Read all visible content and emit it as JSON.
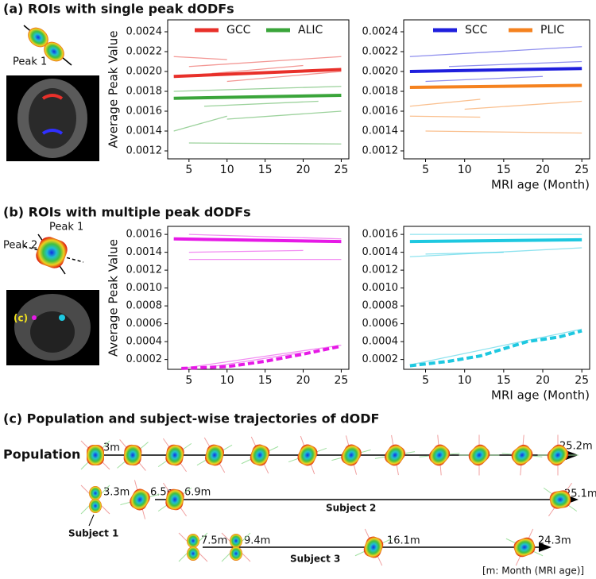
{
  "panels": {
    "a_title": "(a) ROIs with single peak dODFs",
    "a_peak": "Peak 1",
    "b_title": "(b) ROIs with multiple peak dODFs",
    "b_peak1": "Peak 1",
    "b_peak2": "Peak 2",
    "b_roi": "(c)",
    "c_title": "(c) Population and subject-wise trajectories of dODF",
    "c_population": "Population",
    "c_ages": [
      "3m",
      "25.2m",
      "3.3m",
      "6.5m",
      "6.9m",
      "25.1m",
      "7.5m",
      "9.4m",
      "16.1m",
      "24.3m"
    ],
    "c_subjects": [
      "Subject 1",
      "Subject 2",
      "Subject 3"
    ],
    "c_note": "[m: Month (MRI age)]"
  },
  "chart_data": [
    {
      "type": "line",
      "ylabel": "Average Peak Value",
      "xlim": [
        2.2,
        26
      ],
      "xticks": [
        5,
        10,
        15,
        20,
        25
      ],
      "ylim": [
        0.00112,
        0.00252
      ],
      "yticks": [
        0.0012,
        0.0014,
        0.0016,
        0.0018,
        {
          "value": 0.002,
          "label": "0.0020"
        },
        0.0022,
        0.0024
      ],
      "series": [
        {
          "name": "GCC",
          "color": "#e8302a",
          "x": [
            3,
            25
          ],
          "values": [
            0.00195,
            0.00202
          ]
        },
        {
          "name": "ALIC",
          "color": "#3aa53a",
          "x": [
            3,
            25
          ],
          "values": [
            0.00173,
            0.00176
          ]
        }
      ],
      "subject_lines": [
        {
          "color": "#e8302a",
          "x": [
            3,
            10
          ],
          "values": [
            0.00215,
            0.00212
          ]
        },
        {
          "color": "#e8302a",
          "x": [
            5,
            25
          ],
          "values": [
            0.00205,
            0.00215
          ]
        },
        {
          "color": "#e8302a",
          "x": [
            8,
            20
          ],
          "values": [
            0.00198,
            0.00206
          ]
        },
        {
          "color": "#e8302a",
          "x": [
            10,
            25
          ],
          "values": [
            0.0019,
            0.002
          ]
        },
        {
          "color": "#3aa53a",
          "x": [
            3,
            10
          ],
          "values": [
            0.0014,
            0.00155
          ]
        },
        {
          "color": "#3aa53a",
          "x": [
            5,
            25
          ],
          "values": [
            0.00128,
            0.00127
          ]
        },
        {
          "color": "#3aa53a",
          "x": [
            10,
            25
          ],
          "values": [
            0.00152,
            0.0016
          ]
        },
        {
          "color": "#3aa53a",
          "x": [
            3,
            25
          ],
          "values": [
            0.0018,
            0.00185
          ]
        },
        {
          "color": "#3aa53a",
          "x": [
            7,
            22
          ],
          "values": [
            0.00165,
            0.0017
          ]
        }
      ]
    },
    {
      "type": "line",
      "xlabel": "MRI age (Month)",
      "xlim": [
        2.2,
        26
      ],
      "xticks": [
        5,
        10,
        15,
        20,
        25
      ],
      "ylim": [
        0.00112,
        0.00252
      ],
      "yticks": [
        0.0012,
        0.0014,
        0.0016,
        0.0018,
        {
          "value": 0.002,
          "label": "0.0020"
        },
        0.0022,
        0.0024
      ],
      "series": [
        {
          "name": "SCC",
          "color": "#1f1fdd",
          "x": [
            3,
            25
          ],
          "values": [
            0.002,
            0.00203
          ]
        },
        {
          "name": "PLIC",
          "color": "#f5821f",
          "x": [
            3,
            25
          ],
          "values": [
            0.00184,
            0.00186
          ]
        }
      ],
      "subject_lines": [
        {
          "color": "#1f1fdd",
          "x": [
            3,
            25
          ],
          "values": [
            0.00215,
            0.00225
          ]
        },
        {
          "color": "#1f1fdd",
          "x": [
            5,
            20
          ],
          "values": [
            0.0019,
            0.00195
          ]
        },
        {
          "color": "#1f1fdd",
          "x": [
            8,
            25
          ],
          "values": [
            0.00205,
            0.0021
          ]
        },
        {
          "color": "#f5821f",
          "x": [
            3,
            12
          ],
          "values": [
            0.00165,
            0.00172
          ]
        },
        {
          "color": "#f5821f",
          "x": [
            5,
            25
          ],
          "values": [
            0.0014,
            0.00138
          ]
        },
        {
          "color": "#f5821f",
          "x": [
            10,
            25
          ],
          "values": [
            0.00162,
            0.0017
          ]
        },
        {
          "color": "#f5821f",
          "x": [
            3,
            12
          ],
          "values": [
            0.00155,
            0.00154
          ]
        }
      ]
    },
    {
      "type": "line",
      "ylabel": "Average Peak Value",
      "xlim": [
        2.2,
        26
      ],
      "xticks": [
        5,
        10,
        15,
        20,
        25
      ],
      "ylim": [
        9e-05,
        0.00169
      ],
      "yticks": [
        0.0002,
        0.0004,
        0.0006,
        0.0008,
        {
          "value": 0.001,
          "label": "0.0010"
        },
        0.0012,
        0.0014,
        0.0016
      ],
      "series": [
        {
          "color": "#e619e6",
          "x": [
            3,
            25
          ],
          "values": [
            0.00155,
            0.00152
          ]
        },
        {
          "color": "#e619e6",
          "dashed": true,
          "x": [
            4,
            10,
            15,
            20,
            25
          ],
          "values": [
            0.0001,
            0.00012,
            0.00018,
            0.00026,
            0.00035
          ]
        }
      ],
      "subject_lines": [
        {
          "color": "#e619e6",
          "x": [
            5,
            25
          ],
          "values": [
            0.0016,
            0.00155
          ]
        },
        {
          "color": "#e619e6",
          "x": [
            5,
            20
          ],
          "values": [
            0.0014,
            0.00142
          ]
        },
        {
          "color": "#e619e6",
          "x": [
            5,
            25
          ],
          "values": [
            0.00132,
            0.00132
          ]
        },
        {
          "color": "#e619e6",
          "x": [
            4,
            25
          ],
          "values": [
            0.0001,
            0.00036
          ]
        },
        {
          "color": "#e619e6",
          "x": [
            8,
            20
          ],
          "values": [
            0.00012,
            0.00028
          ]
        }
      ]
    },
    {
      "type": "line",
      "xlabel": "MRI age (Month)",
      "xlim": [
        2.2,
        26
      ],
      "xticks": [
        5,
        10,
        15,
        20,
        25
      ],
      "ylim": [
        9e-05,
        0.00169
      ],
      "yticks": [
        0.0002,
        0.0004,
        0.0006,
        0.0008,
        {
          "value": 0.001,
          "label": "0.0010"
        },
        0.0012,
        0.0014,
        0.0016
      ],
      "series": [
        {
          "color": "#1ec8e0",
          "x": [
            3,
            25
          ],
          "values": [
            0.00152,
            0.00154
          ]
        },
        {
          "color": "#1ec8e0",
          "dashed": true,
          "x": [
            3,
            8,
            12,
            15,
            18,
            22,
            25
          ],
          "values": [
            0.00013,
            0.00018,
            0.00024,
            0.00032,
            0.0004,
            0.00045,
            0.00052
          ]
        }
      ],
      "subject_lines": [
        {
          "color": "#1ec8e0",
          "x": [
            3,
            25
          ],
          "values": [
            0.0016,
            0.0016
          ]
        },
        {
          "color": "#1ec8e0",
          "x": [
            3,
            25
          ],
          "values": [
            0.00135,
            0.00145
          ]
        },
        {
          "color": "#1ec8e0",
          "x": [
            5,
            15
          ],
          "values": [
            0.00138,
            0.0014
          ]
        },
        {
          "color": "#1ec8e0",
          "x": [
            3,
            25
          ],
          "values": [
            0.00014,
            0.00054
          ]
        }
      ]
    }
  ]
}
